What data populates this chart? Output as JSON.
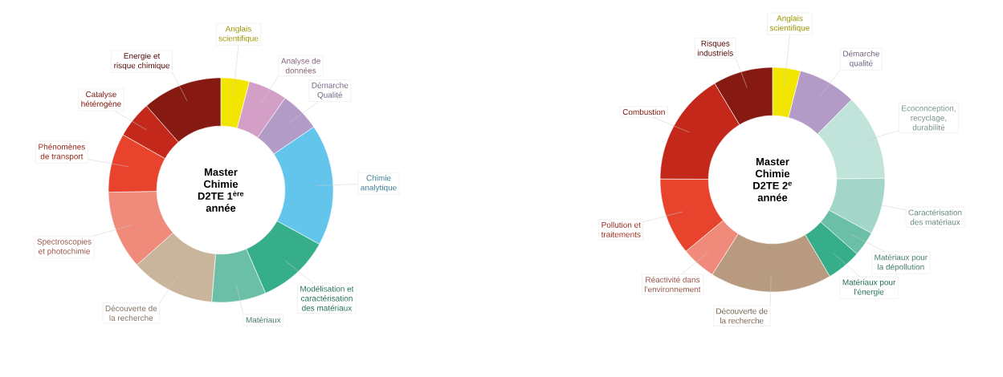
{
  "chart_data": [
    {
      "type": "donut",
      "title": "Master Chimie D2TE 1$^{ère}$ année",
      "categories": [
        "Anglais scientifique",
        "Analyse de données",
        "Démarche Qualité",
        "Chimie analytique",
        "Modélisation et caractérisation des matériaux",
        "Matériaux",
        "Découverte de la recherche",
        "Spectroscopies et photochimie",
        "Phénomènes de transport",
        "Catalyse hétérogène",
        "Energie et risque chimique"
      ],
      "values": [
        4.1,
        5.6,
        5.8,
        17.5,
        10.5,
        7.8,
        12.1,
        11.3,
        8.5,
        5.3,
        11.5
      ],
      "colors": [
        "#f2e600",
        "#d49fc6",
        "#b39bc8",
        "#63c5ec",
        "#36ae8a",
        "#6bbfa6",
        "#c9b49c",
        "#f08a7a",
        "#e8432c",
        "#c4281b",
        "#861a13"
      ]
    },
    {
      "type": "donut",
      "title": "Master Chimie D2TE 2$^{e}$ année",
      "categories": [
        "Anglais scientifique",
        "Démarche qualité",
        "Ecoconception, recyclage, durabilité",
        "Caractérisation des matériaux",
        "Matériaux pour la dépollution",
        "Matériaux pour l'énergie",
        "Découverte de la recherche",
        "Réactivité dans l'environnement",
        "Pollution et traitements",
        "Combustion",
        "Risques industriels"
      ],
      "values": [
        4.0,
        8.4,
        12.4,
        8.1,
        3.6,
        5.0,
        17.5,
        5.0,
        11.1,
        16.3,
        8.6
      ],
      "colors": [
        "#f2e600",
        "#b39bc8",
        "#c0e3da",
        "#a3d5c8",
        "#6bbfa6",
        "#36ae8a",
        "#b89a80",
        "#f08a7a",
        "#e8432c",
        "#c4281b",
        "#861a13"
      ]
    }
  ]
}
